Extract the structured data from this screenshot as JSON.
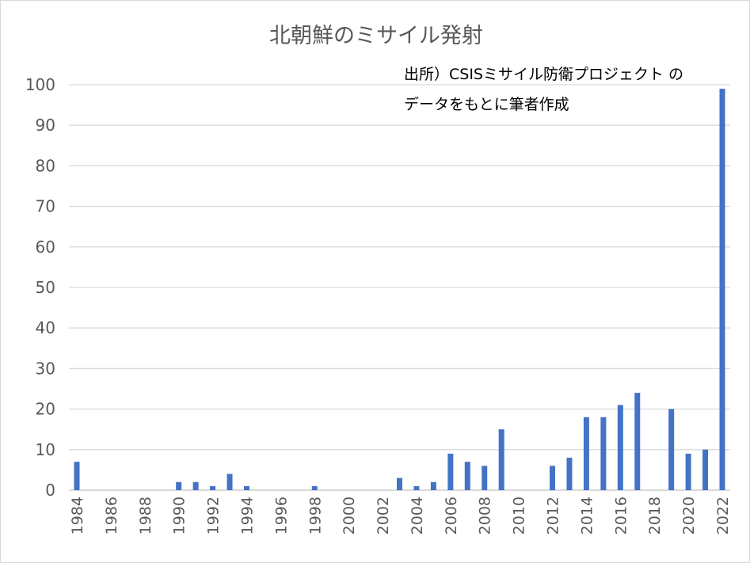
{
  "chart_data": {
    "type": "bar",
    "title": "北朝鮮のミサイル発射",
    "annotation": [
      "出所）CSISミサイル防衛プロジェクト の",
      "データをもとに筆者作成"
    ],
    "xlabel": "",
    "ylabel": "",
    "ylim": [
      0,
      100
    ],
    "yticks": [
      0,
      10,
      20,
      30,
      40,
      50,
      60,
      70,
      80,
      90,
      100
    ],
    "grid": true,
    "bar_color": "#4472c4",
    "categories": [
      1984,
      1985,
      1986,
      1987,
      1988,
      1989,
      1990,
      1991,
      1992,
      1993,
      1994,
      1995,
      1996,
      1997,
      1998,
      1999,
      2000,
      2001,
      2002,
      2003,
      2004,
      2005,
      2006,
      2007,
      2008,
      2009,
      2010,
      2011,
      2012,
      2013,
      2014,
      2015,
      2016,
      2017,
      2018,
      2019,
      2020,
      2021,
      2022
    ],
    "xtick_labels": [
      "1984",
      "1986",
      "1988",
      "1990",
      "1992",
      "1994",
      "1996",
      "1998",
      "2000",
      "2002",
      "2004",
      "2006",
      "2008",
      "2010",
      "2012",
      "2014",
      "2016",
      "2018",
      "2020",
      "2022"
    ],
    "values": [
      7,
      0,
      0,
      0,
      0,
      0,
      2,
      2,
      1,
      4,
      1,
      0,
      0,
      0,
      1,
      0,
      0,
      0,
      0,
      3,
      1,
      2,
      9,
      7,
      6,
      15,
      0,
      0,
      6,
      8,
      18,
      18,
      21,
      24,
      0,
      20,
      9,
      10,
      99
    ]
  }
}
